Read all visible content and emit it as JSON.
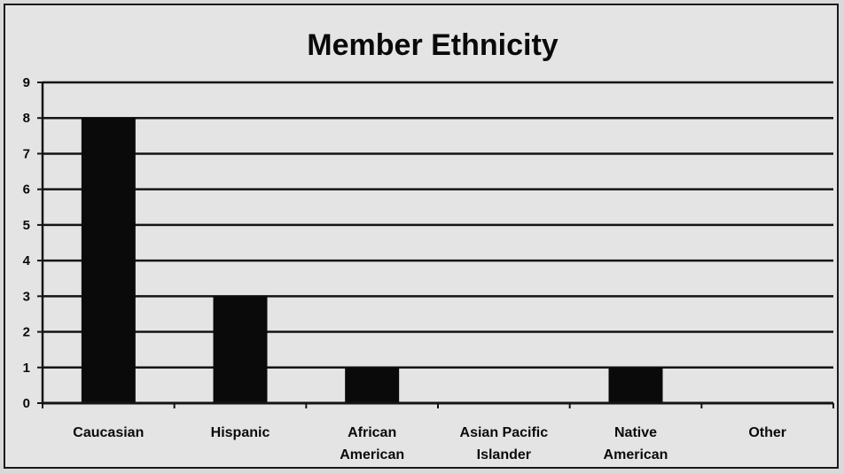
{
  "chart_data": {
    "type": "bar",
    "title": "Member Ethnicity",
    "xlabel": "",
    "ylabel": "",
    "categories": [
      "Caucasian",
      "Hispanic",
      "African American",
      "Asian Pacific Islander",
      "Native American",
      "Other"
    ],
    "values": [
      8,
      3,
      1,
      0,
      1,
      0
    ],
    "ylim": [
      0,
      9
    ],
    "yticks": [
      0,
      1,
      2,
      3,
      4,
      5,
      6,
      7,
      8,
      9
    ],
    "grid": true,
    "legend": "none",
    "bar_color": "#0a0a0a"
  }
}
